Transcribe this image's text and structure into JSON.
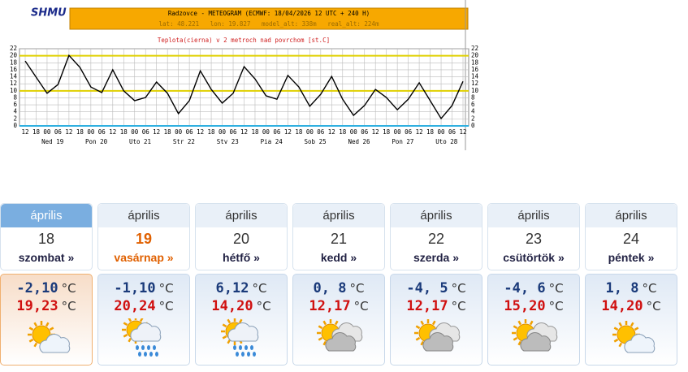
{
  "header": {
    "logo": "SHMU",
    "title": "Radzovce - METEOGRAM (ECMWF: 18/04/2026 12 UTC + 240 H)",
    "info": "lat: 48.221   lon: 19.827   model_alt: 338m   real_alt: 224m"
  },
  "chart_data": {
    "type": "line",
    "title": "Teplota(cierna) v 2 metroch nad povrchom [st.C]",
    "categories": [
      "12",
      "18",
      "00",
      "06",
      "12",
      "18",
      "00",
      "06",
      "12",
      "18",
      "00",
      "06",
      "12",
      "18",
      "00",
      "06",
      "12",
      "18",
      "00",
      "06",
      "12",
      "18",
      "00",
      "06",
      "12",
      "18",
      "00",
      "06",
      "12",
      "18",
      "00",
      "06",
      "12",
      "18",
      "00",
      "06",
      "12",
      "18",
      "00",
      "06",
      "12"
    ],
    "day_labels": [
      "Ned 19",
      "Pon 20",
      "Uto 21",
      "Str 22",
      "Stv 23",
      "Pia 24",
      "Sob 25",
      "Ned 26",
      "Pon 27",
      "Uto 28"
    ],
    "series": [
      {
        "name": "Teplota",
        "color": "#000000",
        "values": [
          18.5,
          13.9,
          9.3,
          11.8,
          20.1,
          16.7,
          11.1,
          9.5,
          16,
          10,
          7.2,
          8.1,
          12.5,
          9.3,
          3.5,
          7.2,
          15.7,
          10.4,
          6.5,
          9.3,
          16.9,
          13.4,
          8.6,
          7.6,
          14.4,
          11.1,
          5.6,
          9,
          14.1,
          7.6,
          3,
          5.8,
          10.4,
          8.1,
          4.6,
          7.6,
          12.3,
          7.2,
          2.1,
          5.8,
          12.7
        ]
      }
    ],
    "ylim": [
      0,
      22
    ],
    "yticks": [
      0,
      2,
      4,
      6,
      8,
      10,
      12,
      14,
      16,
      18,
      20,
      22
    ],
    "y2lim": [
      0,
      22
    ],
    "y2ticks": [
      0,
      2,
      4,
      6,
      8,
      10,
      12,
      14,
      16,
      18,
      20,
      22
    ],
    "reference_lines": [
      {
        "value": 20,
        "color": "#e0d000"
      },
      {
        "value": 10,
        "color": "#e0d000"
      },
      {
        "value": 0,
        "color": "#30b0e0"
      }
    ],
    "grid": true
  },
  "forecast": {
    "unit": "°C",
    "days": [
      {
        "month": "április",
        "day": "18",
        "weekday": "szombat »",
        "min": "-2,10",
        "max": "19,23",
        "icon": "sun-cloud",
        "selected": true
      },
      {
        "month": "április",
        "day": "19",
        "weekday": "vasárnap »",
        "min": "-1,10",
        "max": "20,24",
        "icon": "rain",
        "today": true
      },
      {
        "month": "április",
        "day": "20",
        "weekday": "hétfő »",
        "min": "6,12",
        "max": "14,20",
        "icon": "rain-sun"
      },
      {
        "month": "április",
        "day": "21",
        "weekday": "kedd »",
        "min": "0, 8",
        "max": "12,17",
        "icon": "sun-grey"
      },
      {
        "month": "április",
        "day": "22",
        "weekday": "szerda »",
        "min": "-4, 5",
        "max": "12,17",
        "icon": "sun-grey"
      },
      {
        "month": "április",
        "day": "23",
        "weekday": "csütörtök »",
        "min": "-4, 6",
        "max": "15,20",
        "icon": "sun-grey"
      },
      {
        "month": "április",
        "day": "24",
        "weekday": "péntek »",
        "min": "1, 8",
        "max": "14,20",
        "icon": "sun-cloud"
      }
    ]
  }
}
